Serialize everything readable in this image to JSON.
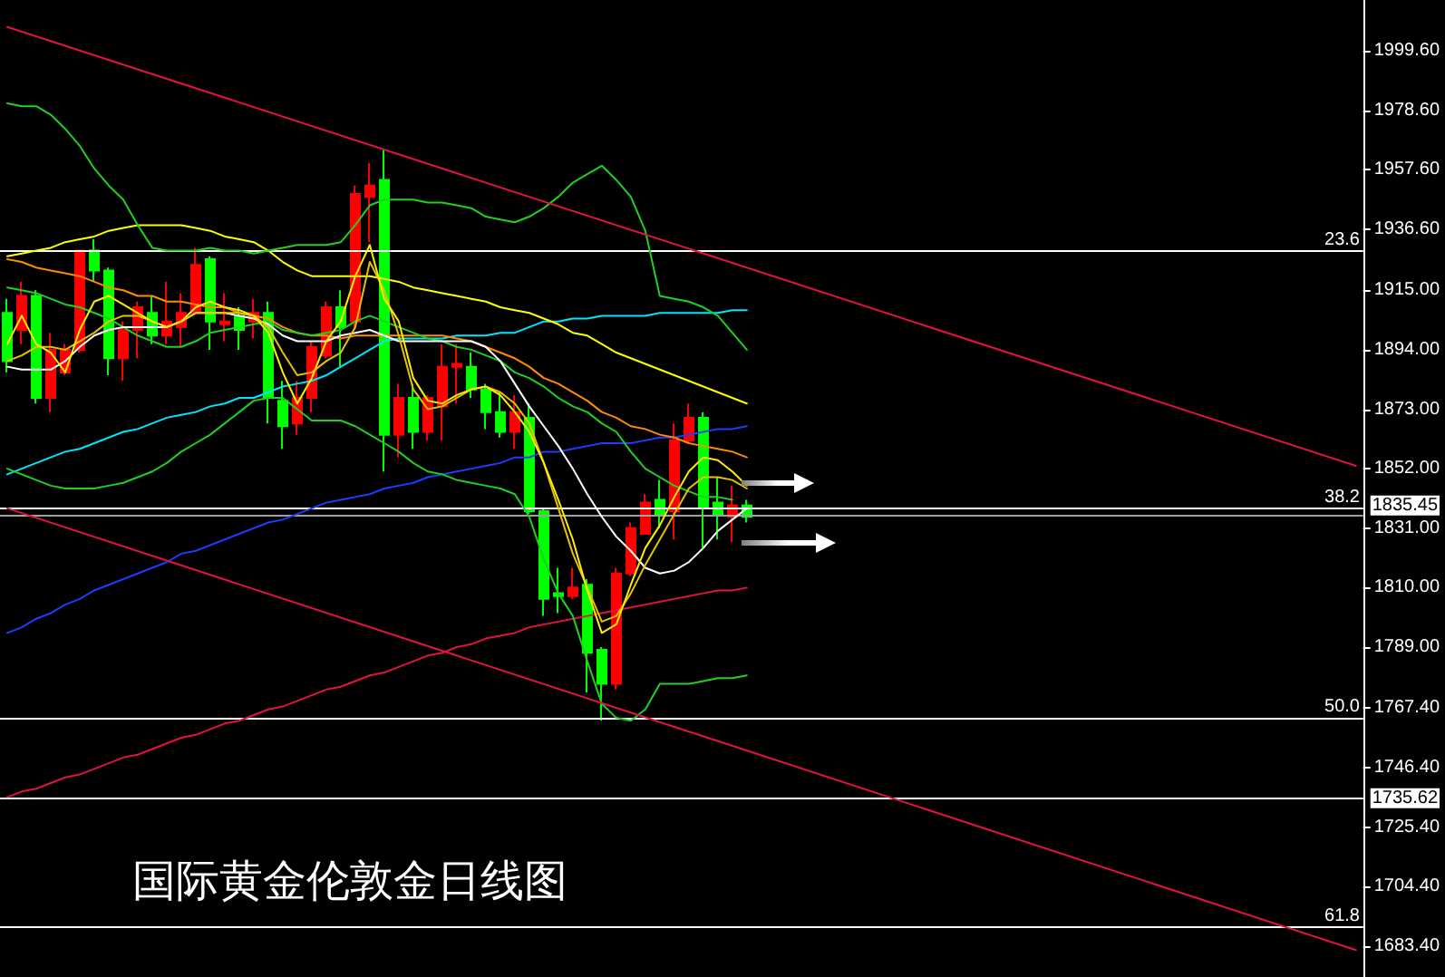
{
  "chart_data": {
    "type": "candlestick",
    "title": "国际黄金伦敦金日线图",
    "categories": [
      null,
      null,
      null,
      null,
      null,
      null,
      null,
      null,
      null,
      null,
      null,
      null,
      null,
      null,
      null,
      null,
      null,
      null,
      null,
      null,
      null,
      null,
      null,
      null,
      null,
      null,
      null,
      null,
      null,
      null,
      null,
      null,
      null,
      null,
      null,
      null,
      null,
      null,
      null,
      null,
      null,
      null,
      null,
      null,
      null,
      null,
      null,
      null,
      null,
      null,
      null,
      null,
      null,
      null,
      null,
      null,
      null,
      null,
      null,
      null,
      null,
      null,
      null,
      null,
      null,
      null,
      null,
      null,
      null,
      null,
      null,
      null,
      null,
      null,
      null,
      null,
      null,
      null,
      null,
      null,
      null,
      null,
      null,
      null,
      null,
      null,
      null,
      null,
      null,
      null,
      null,
      null,
      null,
      null
    ],
    "ohlc": [
      [
        1907,
        1912,
        1886,
        1890
      ],
      [
        1901,
        1918,
        1896,
        1913
      ],
      [
        1913,
        1915,
        1875,
        1877
      ],
      [
        1877,
        1900,
        1872,
        1894
      ],
      [
        1886,
        1896,
        1885,
        1894
      ],
      [
        1894,
        1929,
        1893,
        1929
      ],
      [
        1929,
        1933,
        1918,
        1922
      ],
      [
        1922,
        1923,
        1885,
        1891
      ],
      [
        1891,
        1904,
        1883,
        1901
      ],
      [
        1901,
        1911,
        1891,
        1909
      ],
      [
        1907,
        1913,
        1896,
        1899
      ],
      [
        1899,
        1918,
        1896,
        1904
      ],
      [
        1902,
        1914,
        1895,
        1907
      ],
      [
        1907,
        1930,
        1907,
        1924
      ],
      [
        1926,
        1927,
        1894,
        1904
      ],
      [
        1903,
        1914,
        1897,
        1904
      ],
      [
        1906,
        1909,
        1894,
        1901
      ],
      [
        1904,
        1912,
        1898,
        1907
      ],
      [
        1907,
        1911,
        1868,
        1877
      ],
      [
        1876,
        1883,
        1859,
        1867
      ],
      [
        1868,
        1883,
        1864,
        1877
      ],
      [
        1877,
        1897,
        1872,
        1895
      ],
      [
        1892,
        1911,
        1891,
        1909
      ],
      [
        1909,
        1915,
        1888,
        1902
      ],
      [
        1904,
        1952,
        1901,
        1949
      ],
      [
        1948,
        1960,
        1932,
        1952
      ],
      [
        1954,
        1965,
        1851,
        1864
      ],
      [
        1864,
        1882,
        1856,
        1877
      ],
      [
        1877,
        1882,
        1859,
        1865
      ],
      [
        1865,
        1878,
        1862,
        1877
      ],
      [
        1874,
        1896,
        1862,
        1888
      ],
      [
        1888,
        1896,
        1875,
        1889
      ],
      [
        1888,
        1893,
        1877,
        1880
      ],
      [
        1880,
        1882,
        1866,
        1872
      ],
      [
        1872,
        1879,
        1863,
        1865
      ],
      [
        1865,
        1878,
        1859,
        1872
      ],
      [
        1870,
        1875,
        1836,
        1837
      ],
      [
        1837,
        1838,
        1800,
        1806
      ],
      [
        1808,
        1817,
        1801,
        1807
      ],
      [
        1807,
        1817,
        1806,
        1810
      ],
      [
        1811,
        1813,
        1773,
        1787
      ],
      [
        1788,
        1789,
        1763,
        1776
      ],
      [
        1776,
        1817,
        1774,
        1815
      ],
      [
        1815,
        1833,
        1814,
        1831
      ],
      [
        1829,
        1843,
        1829,
        1840
      ],
      [
        1841,
        1848,
        1831,
        1836
      ],
      [
        1837,
        1868,
        1827,
        1862
      ],
      [
        1862,
        1875,
        1861,
        1870
      ],
      [
        1870,
        1872,
        1824,
        1838
      ],
      [
        1840,
        1849,
        1827,
        1836
      ],
      [
        1835,
        1846,
        1826,
        1839
      ],
      [
        1839,
        1841,
        1833,
        1835
      ],
      null,
      null,
      null,
      null,
      null,
      null,
      null,
      null,
      null,
      null,
      null,
      null,
      null,
      null,
      null,
      null,
      null,
      null,
      null,
      null,
      null,
      null,
      null,
      null,
      null,
      null,
      null,
      null,
      null,
      null,
      null,
      null,
      null,
      null,
      null,
      null,
      null,
      null,
      null,
      null,
      null,
      null
    ],
    "colors": [
      "#00ff00",
      "#ff0000",
      "#00ff00",
      "#ff0000",
      "#ff0000",
      "#ff0000",
      "#00ff00",
      "#00ff00",
      "#ff0000",
      "#ff0000",
      "#00ff00",
      "#ff0000",
      "#ff0000",
      "#ff0000",
      "#00ff00",
      "#ff0000",
      "#00ff00",
      "#ff0000",
      "#00ff00",
      "#00ff00",
      "#ff0000",
      "#ff0000",
      "#ff0000",
      "#00ff00",
      "#ff0000",
      "#ff0000",
      "#00ff00",
      "#ff0000",
      "#00ff00",
      "#ff0000",
      "#ff0000",
      "#ff0000",
      "#00ff00",
      "#00ff00",
      "#00ff00",
      "#ff0000",
      "#00ff00",
      "#00ff00",
      "#00ff00",
      "#ff0000",
      "#00ff00",
      "#00ff00",
      "#ff0000",
      "#ff0000",
      "#ff0000",
      "#00ff00",
      "#ff0000",
      "#ff0000",
      "#00ff00",
      "#00ff00",
      "#ff0000",
      "#00ff00",
      null,
      null,
      null,
      null,
      null,
      null,
      null,
      null,
      null,
      null,
      null,
      null,
      null,
      null,
      null,
      null,
      null,
      null,
      null,
      null,
      null,
      null,
      null,
      null,
      null,
      null,
      null,
      null,
      null,
      null,
      null,
      null,
      null,
      null,
      null,
      null,
      null,
      null,
      null,
      null,
      null,
      null
    ],
    "series": [
      {
        "type": "line",
        "color": "#e0143c",
        "values": [
          1736,
          1738,
          1739,
          1741,
          1743,
          1744,
          1746,
          1748,
          1750,
          1751,
          1753,
          1755,
          1757,
          1758,
          1760,
          1762,
          1763,
          1765,
          1767,
          1768,
          1770,
          1772,
          1774,
          1775,
          1777,
          1779,
          1780,
          1782,
          1784,
          1786,
          1787,
          1789,
          1790,
          1792,
          1793,
          1794,
          1796,
          1797,
          1798,
          1799,
          1800,
          1801,
          1802,
          1803,
          1804,
          1805,
          1806,
          1807,
          1808,
          1809,
          1809,
          1810,
          null,
          null,
          null,
          null,
          null,
          null,
          null,
          null,
          null,
          null,
          null,
          null,
          null,
          null,
          null,
          null,
          null,
          null,
          null,
          null,
          null,
          null,
          null,
          null,
          null,
          null,
          null,
          null,
          null,
          null,
          null,
          null,
          null,
          null,
          null,
          null,
          null,
          null,
          null,
          null,
          null,
          null
        ]
      },
      {
        "type": "line",
        "color": "#1e3cff",
        "values": [
          1794,
          1796,
          1799,
          1801,
          1804,
          1806,
          1809,
          1811,
          1813,
          1815,
          1817,
          1819,
          1822,
          1823,
          1825,
          1827,
          1829,
          1831,
          1833,
          1834,
          1836,
          1838,
          1840,
          1841,
          1842,
          1843,
          1845,
          1846,
          1847,
          1849,
          1850,
          1851,
          1852,
          1853,
          1854,
          1856,
          1856,
          1858,
          1858,
          1859,
          1860,
          1861,
          1861,
          1861,
          1862,
          1863,
          1863,
          1864,
          1865,
          1866,
          1866,
          1867,
          null,
          null,
          null,
          null,
          null,
          null,
          null,
          null,
          null,
          null,
          null,
          null,
          null,
          null,
          null,
          null,
          null,
          null,
          null,
          null,
          null,
          null,
          null,
          null,
          null,
          null,
          null,
          null,
          null,
          null,
          null,
          null,
          null,
          null,
          null,
          null,
          null,
          null,
          null,
          null,
          null,
          null
        ]
      },
      {
        "type": "line",
        "color": "#00e5ff",
        "values": [
          1850,
          1852,
          1854,
          1856,
          1858,
          1859,
          1861,
          1863,
          1865,
          1866,
          1868,
          1870,
          1871,
          1872,
          1874,
          1875,
          1877,
          1877,
          1879,
          1881,
          1882,
          1883,
          1885,
          1888,
          1891,
          1894,
          1897,
          1898,
          1898,
          1898,
          1898,
          1899,
          1899,
          1899,
          1900,
          1900,
          1902,
          1904,
          1904,
          1905,
          1905,
          1906,
          1906,
          1906,
          1906,
          1907,
          1907,
          1907,
          1907,
          1907,
          1908,
          1908,
          null,
          null,
          null,
          null,
          null,
          null,
          null,
          null,
          null,
          null,
          null,
          null,
          null,
          null,
          null,
          null,
          null,
          null,
          null,
          null,
          null,
          null,
          null,
          null,
          null,
          null,
          null,
          null,
          null,
          null,
          null,
          null,
          null,
          null,
          null,
          null,
          null,
          null,
          null,
          null,
          null,
          null
        ]
      },
      {
        "type": "line",
        "color": "#ff8c00",
        "values": [
          1926,
          1925,
          1923,
          1922,
          1921,
          1920,
          1918,
          1916,
          1915,
          1913,
          1913,
          1911,
          1911,
          1910,
          1909,
          1909,
          1907,
          1906,
          1905,
          1902,
          1900,
          1899,
          1899,
          1898,
          1899,
          1899,
          1899,
          1899,
          1899,
          1899,
          1899,
          1898,
          1897,
          1895,
          1893,
          1891,
          1888,
          1884,
          1882,
          1879,
          1876,
          1872,
          1870,
          1867,
          1866,
          1864,
          1863,
          1861,
          1860,
          1859,
          1858,
          1856,
          null,
          null,
          null,
          null,
          null,
          null,
          null,
          null,
          null,
          null,
          null,
          null,
          null,
          null,
          null,
          null,
          null,
          null,
          null,
          null,
          null,
          null,
          null,
          null,
          null,
          null,
          null,
          null,
          null,
          null,
          null,
          null,
          null,
          null,
          null,
          null,
          null,
          null,
          null,
          null,
          null,
          null
        ]
      },
      {
        "type": "line",
        "color": "#ffff00",
        "values": [
          1927,
          1928,
          1929,
          1930,
          1932,
          1933,
          1934,
          1936,
          1937,
          1938,
          1938,
          1938,
          1938,
          1937,
          1936,
          1934,
          1933,
          1932,
          1929,
          1925,
          1922,
          1920,
          1920,
          1920,
          1920,
          1920,
          1919,
          1918,
          1916,
          1915,
          1914,
          1913,
          1912,
          1911,
          1909,
          1908,
          1907,
          1905,
          1903,
          1900,
          1899,
          1896,
          1893,
          1891,
          1889,
          1887,
          1885,
          1883,
          1881,
          1879,
          1877,
          1875,
          null,
          null,
          null,
          null,
          null,
          null,
          null,
          null,
          null,
          null,
          null,
          null,
          null,
          null,
          null,
          null,
          null,
          null,
          null,
          null,
          null,
          null,
          null,
          null,
          null,
          null,
          null,
          null,
          null,
          null,
          null,
          null,
          null,
          null,
          null,
          null,
          null,
          null,
          null,
          null,
          null,
          null
        ]
      },
      {
        "type": "line",
        "color": "#20d020",
        "values": [
          1981,
          1980,
          1980,
          1977,
          1972,
          1966,
          1958,
          1952,
          1947,
          1938,
          1930,
          1929,
          1929,
          1929,
          1930,
          1929,
          1929,
          1928,
          1929,
          1930,
          1931,
          1931,
          1931,
          1932,
          1938,
          1945,
          1947,
          1947,
          1947,
          1946,
          1946,
          1945,
          1944,
          1941,
          1940,
          1939,
          1941,
          1944,
          1948,
          1953,
          1956,
          1959,
          1954,
          1948,
          1936,
          1913,
          1912,
          1911,
          1909,
          1906,
          1900,
          1894,
          null,
          null,
          null,
          null,
          null,
          null,
          null,
          null,
          null,
          null,
          null,
          null,
          null,
          null,
          null,
          null,
          null,
          null,
          null,
          null,
          null,
          null,
          null,
          null,
          null,
          null,
          null,
          null,
          null,
          null,
          null,
          null,
          null,
          null,
          null,
          null,
          null,
          null,
          null,
          null,
          null,
          null
        ]
      },
      {
        "type": "line",
        "color": "#20d020",
        "values": [
          1916,
          1915,
          1914,
          1912,
          1910,
          1909,
          1907,
          1905,
          1902,
          1899,
          1897,
          1895,
          1895,
          1897,
          1900,
          1901,
          1902,
          1903,
          1904,
          1901,
          1900,
          1899,
          1900,
          1901,
          1904,
          1906,
          1904,
          1902,
          1900,
          1898,
          1897,
          1895,
          1894,
          1892,
          1890,
          1886,
          1884,
          1881,
          1877,
          1874,
          1872,
          1868,
          1865,
          1858,
          1852,
          1849,
          1846,
          1844,
          1842,
          1842,
          1841,
          null,
          null,
          null,
          null,
          null,
          null,
          null,
          null,
          null,
          null,
          null,
          null,
          null,
          null,
          null,
          null,
          null,
          null,
          null,
          null,
          null,
          null,
          null,
          null,
          null,
          null,
          null,
          null,
          null,
          null,
          null,
          null,
          null,
          null,
          null,
          null,
          null,
          null,
          null,
          null,
          null,
          null,
          null
        ]
      },
      {
        "type": "line",
        "color": "#20d020",
        "values": [
          1852,
          1850,
          1848,
          1846,
          1845,
          1845,
          1845,
          1846,
          1847,
          1849,
          1851,
          1854,
          1858,
          1861,
          1864,
          1868,
          1872,
          1876,
          1877,
          1877,
          1873,
          1869,
          1869,
          1869,
          1867,
          1864,
          1861,
          1858,
          1854,
          1851,
          1850,
          1848,
          1847,
          1846,
          1845,
          1843,
          1835,
          1820,
          1808,
          1800,
          1784,
          1769,
          1764,
          1763,
          1767,
          1776,
          1776,
          1776,
          1777,
          1778,
          1778,
          1779,
          null,
          null,
          null,
          null,
          null,
          null,
          null,
          null,
          null,
          null,
          null,
          null,
          null,
          null,
          null,
          null,
          null,
          null,
          null,
          null,
          null,
          null,
          null,
          null,
          null,
          null,
          null,
          null,
          null,
          null,
          null,
          null,
          null,
          null,
          null,
          null,
          null,
          null,
          null,
          null,
          null,
          null
        ]
      },
      {
        "type": "line",
        "color": "#ffffff",
        "values": [
          1888,
          1887,
          1887,
          1887,
          1890,
          1895,
          1899,
          1901,
          1902,
          1902,
          1902,
          1902,
          1904,
          1907,
          1907,
          1907,
          1906,
          1905,
          1903,
          1899,
          1897,
          1897,
          1897,
          1899,
          1900,
          1901,
          1899,
          1897,
          1897,
          1897,
          1897,
          1897,
          1897,
          1895,
          1890,
          1882,
          1874,
          1867,
          1860,
          1852,
          1843,
          1835,
          1828,
          1823,
          1817,
          1815,
          1816,
          1819,
          1824,
          1830,
          1834,
          1838,
          null,
          null,
          null,
          null,
          null,
          null,
          null,
          null,
          null,
          null,
          null,
          null,
          null,
          null,
          null,
          null,
          null,
          null,
          null,
          null,
          null,
          null,
          null,
          null,
          null,
          null,
          null,
          null,
          null,
          null,
          null,
          null,
          null,
          null,
          null,
          null,
          null,
          null,
          null,
          null,
          null,
          null
        ]
      },
      {
        "type": "line",
        "color": "#e6c200",
        "values": [
          1890,
          1892,
          1895,
          1895,
          1894,
          1897,
          1900,
          1904,
          1906,
          1906,
          1904,
          1902,
          1904,
          1907,
          1907,
          1907,
          1907,
          1906,
          1902,
          1893,
          1885,
          1886,
          1890,
          1893,
          1902,
          1925,
          1915,
          1899,
          1880,
          1873,
          1874,
          1877,
          1880,
          1881,
          1879,
          1875,
          1868,
          1854,
          1838,
          1822,
          1810,
          1798,
          1800,
          1808,
          1818,
          1827,
          1836,
          1845,
          1849,
          1849,
          1848,
          1845,
          null,
          null,
          null,
          null,
          null,
          null,
          null,
          null,
          null,
          null,
          null,
          null,
          null,
          null,
          null,
          null,
          null,
          null,
          null,
          null,
          null,
          null,
          null,
          null,
          null,
          null,
          null,
          null,
          null,
          null,
          null,
          null,
          null,
          null,
          null,
          null,
          null,
          null,
          null,
          null,
          null,
          null
        ]
      },
      {
        "type": "line",
        "color": "#ffee00",
        "values": [
          1896,
          1906,
          1896,
          1893,
          1886,
          1901,
          1911,
          1913,
          1910,
          1907,
          1904,
          1902,
          1904,
          1909,
          1911,
          1909,
          1908,
          1906,
          1900,
          1886,
          1875,
          1884,
          1897,
          1904,
          1920,
          1931,
          1912,
          1904,
          1884,
          1876,
          1875,
          1878,
          1880,
          1881,
          1878,
          1872,
          1865,
          1854,
          1841,
          1827,
          1809,
          1794,
          1797,
          1811,
          1824,
          1832,
          1842,
          1851,
          1856,
          1855,
          1851,
          1846,
          null,
          null,
          null,
          null,
          null,
          null,
          null,
          null,
          null,
          null,
          null,
          null,
          null,
          null,
          null,
          null,
          null,
          null,
          null,
          null,
          null,
          null,
          null,
          null,
          null,
          null,
          null,
          null,
          null,
          null,
          null,
          null,
          null,
          null,
          null,
          null,
          null,
          null,
          null,
          null,
          null,
          null
        ]
      },
      {
        "type": "line",
        "color": "#e0143c",
        "values": [
          2008,
          null,
          null,
          null,
          null,
          null,
          null,
          null,
          null,
          null,
          null,
          null,
          null,
          null,
          null,
          null,
          null,
          null,
          null,
          null,
          null,
          null,
          null,
          null,
          null,
          null,
          null,
          null,
          null,
          null,
          null,
          null,
          null,
          null,
          null,
          null,
          null,
          null,
          null,
          null,
          null,
          null,
          null,
          null,
          null,
          null,
          null,
          null,
          null,
          null,
          null,
          null,
          null,
          null,
          null,
          null,
          null,
          null,
          null,
          null,
          null,
          null,
          null,
          null,
          null,
          null,
          null,
          null,
          null,
          null,
          null,
          null,
          null,
          null,
          null,
          null,
          null,
          null,
          null,
          null,
          null,
          null,
          null,
          null,
          null,
          null,
          null,
          null,
          null,
          null,
          null,
          null,
          null,
          1853
        ]
      },
      {
        "type": "line",
        "color": "#e0143c",
        "values": [
          1838,
          null,
          null,
          null,
          null,
          null,
          null,
          null,
          null,
          null,
          null,
          null,
          null,
          null,
          null,
          null,
          null,
          null,
          null,
          null,
          null,
          null,
          null,
          null,
          null,
          null,
          null,
          null,
          null,
          null,
          null,
          null,
          null,
          null,
          null,
          null,
          null,
          null,
          null,
          null,
          null,
          null,
          null,
          null,
          null,
          null,
          null,
          null,
          null,
          null,
          null,
          null,
          null,
          null,
          null,
          null,
          null,
          null,
          null,
          null,
          null,
          null,
          null,
          null,
          null,
          null,
          null,
          null,
          null,
          null,
          null,
          null,
          null,
          null,
          null,
          null,
          null,
          null,
          null,
          null,
          null,
          null,
          null,
          null,
          null,
          null,
          null,
          null,
          null,
          null,
          null,
          null,
          null,
          1682
        ]
      }
    ],
    "ref_lines": [
      {
        "axis": "y",
        "value": 1929,
        "color": "#ffffff"
      },
      {
        "axis": "y",
        "value": 1838,
        "color": "#ffffff"
      },
      {
        "axis": "y",
        "value": 1764,
        "color": "#ffffff"
      },
      {
        "axis": "y",
        "value": 1690,
        "color": "#ffffff"
      },
      {
        "axis": "y",
        "value": 1835.45,
        "label": "1835.45",
        "color": "#a0a0a0"
      },
      {
        "axis": "y",
        "value": 1735.62,
        "label": "1735.62",
        "color": "#ffffff"
      }
    ],
    "annotations": [
      {
        "text": "23.6",
        "y": 1929
      },
      {
        "text": "38.2",
        "y": 1838
      },
      {
        "text": "50.0",
        "y": 1764
      },
      {
        "text": "61.8",
        "y": 1690
      }
    ],
    "ylim": [
      1672.5,
      2017.5
    ],
    "yticks": [
      {
        "value": 1999.6,
        "label": "1999.60"
      },
      {
        "value": 1978.6,
        "label": "1978.60"
      },
      {
        "value": 1957.6,
        "label": "1957.60"
      },
      {
        "value": 1936.6,
        "label": "1936.60"
      },
      {
        "value": 1915,
        "label": "1915.00"
      },
      {
        "value": 1894,
        "label": "1894.00"
      },
      {
        "value": 1873,
        "label": "1873.00"
      },
      {
        "value": 1852,
        "label": "1852.00"
      },
      {
        "value": 1831,
        "label": "1831.00"
      },
      {
        "value": 1810,
        "label": "1810.00"
      },
      {
        "value": 1789,
        "label": "1789.00"
      },
      {
        "value": 1767.4,
        "label": "1767.40"
      },
      {
        "value": 1746.4,
        "label": "1746.40"
      },
      {
        "value": 1725.4,
        "label": "1725.40"
      },
      {
        "value": 1704.4,
        "label": "1704.40"
      },
      {
        "value": 1683.4,
        "label": "1683.40"
      }
    ],
    "tick_labels": "y",
    "marker": "none"
  }
}
